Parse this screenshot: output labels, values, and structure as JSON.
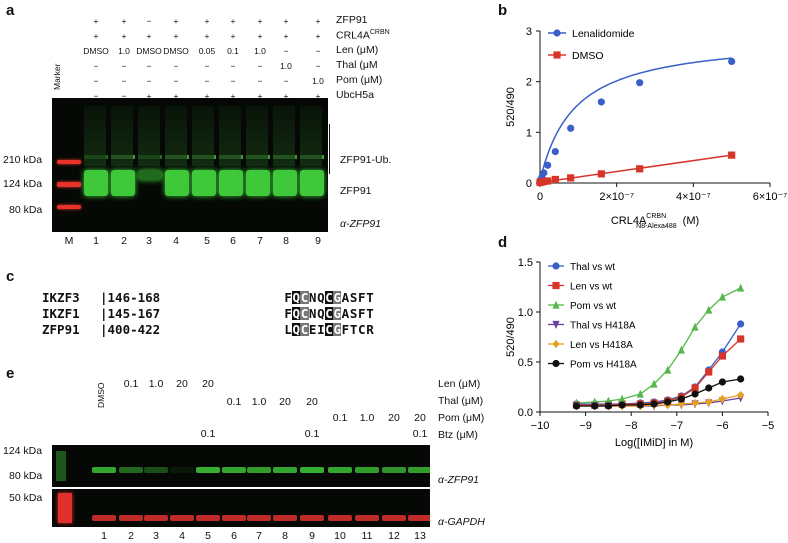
{
  "panel_a": {
    "label": "a",
    "rows": [
      {
        "name": "ZFP91",
        "vals": [
          "+",
          "+",
          "−",
          "+",
          "+",
          "+",
          "+",
          "+",
          "+"
        ]
      },
      {
        "name": "CRL4A",
        "sup": "CRBN",
        "vals": [
          "+",
          "+",
          "+",
          "+",
          "+",
          "+",
          "+",
          "+",
          "+"
        ]
      },
      {
        "name": "Len (μM)",
        "vals": [
          "DMSO",
          "1.0",
          "DMSO",
          "DMSO",
          "0.05",
          "0.1",
          "1.0",
          "−",
          "−"
        ]
      },
      {
        "name": "Thal (μM",
        "vals": [
          "−",
          "−",
          "−",
          "−",
          "−",
          "−",
          "−",
          "1.0",
          "−"
        ]
      },
      {
        "name": "Pom (μM)",
        "vals": [
          "−",
          "−",
          "−",
          "−",
          "−",
          "−",
          "−",
          "−",
          "1.0"
        ]
      },
      {
        "name": "UbcH5a",
        "vals": [
          "−",
          "−",
          "+",
          "+",
          "+",
          "+",
          "+",
          "+",
          "+"
        ]
      }
    ],
    "marker_label": "Marker",
    "mw_labels": [
      "210 kDa",
      "124 kDa",
      "80 kDa"
    ],
    "right_labels": [
      "ZFP91-Ub.",
      "ZFP91",
      "α-ZFP91"
    ],
    "lane_labels": [
      "M",
      "1",
      "2",
      "3",
      "4",
      "5",
      "6",
      "7",
      "8",
      "9"
    ]
  },
  "panel_b": {
    "label": "b",
    "chart_data": {
      "type": "scatter",
      "xlabel": "CRL4A",
      "xlabel_sup": "CRBN",
      "xlabel_sub": "N8-Alexa488",
      "xlabel_unit": "(M)",
      "ylabel": "520/490",
      "xlim": [
        0,
        6e-07
      ],
      "ylim": [
        0,
        3
      ],
      "xticks": [
        "0",
        "2×10⁻⁷",
        "4×10⁻⁷",
        "6×10⁻⁷"
      ],
      "yticks": [
        "0",
        "1",
        "2",
        "3"
      ],
      "series": [
        {
          "name": "Lenalidomide",
          "color": "#3a5fc8",
          "marker": "circle",
          "x": [
            0,
            5e-09,
            1e-08,
            2e-08,
            4e-08,
            8e-08,
            1.6e-07,
            2.6e-07,
            5e-07
          ],
          "y": [
            0.05,
            0.12,
            0.2,
            0.35,
            0.62,
            1.08,
            1.6,
            1.98,
            2.4
          ]
        },
        {
          "name": "DMSO",
          "color": "#d8352a",
          "marker": "square",
          "x": [
            0,
            5e-09,
            1e-08,
            2e-08,
            4e-08,
            8e-08,
            1.6e-07,
            2.6e-07,
            5e-07
          ],
          "y": [
            0.01,
            0.02,
            0.03,
            0.04,
            0.07,
            0.1,
            0.18,
            0.28,
            0.55
          ]
        }
      ]
    }
  },
  "panel_c": {
    "label": "c",
    "rows": [
      {
        "name": "IKZF3",
        "range": "|146-168",
        "seq": "FQCNQCGASFT"
      },
      {
        "name": "IKZF1",
        "range": "|145-167",
        "seq": "FQCNQCGASFT"
      },
      {
        "name": "ZFP91",
        "range": "|400-422",
        "seq": "LQCEICGFTCR"
      }
    ]
  },
  "panel_d": {
    "label": "d",
    "chart_data": {
      "type": "scatter",
      "xlabel": "Log([IMiD] in M)",
      "ylabel": "520/490",
      "xlim": [
        -10,
        -5
      ],
      "ylim": [
        0,
        1.5
      ],
      "xticks": [
        "−10",
        "−9",
        "−8",
        "−7",
        "−6",
        "−5"
      ],
      "yticks": [
        "0.0",
        "0.5",
        "1.0",
        "1.5"
      ],
      "series": [
        {
          "name": "Thal vs wt",
          "color": "#3a5fc8",
          "marker": "circle",
          "x": [
            -9.2,
            -8.8,
            -8.5,
            -8.2,
            -7.8,
            -7.5,
            -7.2,
            -6.9,
            -6.6,
            -6.3,
            -6.0,
            -5.6
          ],
          "y": [
            0.08,
            0.08,
            0.08,
            0.08,
            0.09,
            0.1,
            0.12,
            0.16,
            0.25,
            0.42,
            0.6,
            0.88
          ]
        },
        {
          "name": "Len vs wt",
          "color": "#d8352a",
          "marker": "square",
          "x": [
            -9.2,
            -8.8,
            -8.5,
            -8.2,
            -7.8,
            -7.5,
            -7.2,
            -6.9,
            -6.6,
            -6.3,
            -6.0,
            -5.6
          ],
          "y": [
            0.07,
            0.07,
            0.07,
            0.08,
            0.08,
            0.09,
            0.11,
            0.15,
            0.24,
            0.4,
            0.56,
            0.73
          ]
        },
        {
          "name": "Pom vs wt",
          "color": "#55b84a",
          "marker": "triangle",
          "x": [
            -9.2,
            -8.8,
            -8.5,
            -8.2,
            -7.8,
            -7.5,
            -7.2,
            -6.9,
            -6.6,
            -6.3,
            -6.0,
            -5.6
          ],
          "y": [
            0.09,
            0.1,
            0.11,
            0.13,
            0.18,
            0.28,
            0.42,
            0.62,
            0.85,
            1.02,
            1.15,
            1.24
          ]
        },
        {
          "name": "Thal vs H418A",
          "color": "#6b3fa0",
          "marker": "triangle-down",
          "x": [
            -9.2,
            -8.8,
            -8.5,
            -8.2,
            -7.8,
            -7.5,
            -7.2,
            -6.9,
            -6.6,
            -6.3,
            -6.0,
            -5.6
          ],
          "y": [
            0.06,
            0.06,
            0.06,
            0.06,
            0.06,
            0.06,
            0.07,
            0.07,
            0.08,
            0.09,
            0.11,
            0.14
          ]
        },
        {
          "name": "Len vs H418A",
          "color": "#e9a020",
          "marker": "diamond",
          "x": [
            -9.2,
            -8.8,
            -8.5,
            -8.2,
            -7.8,
            -7.5,
            -7.2,
            -6.9,
            -6.6,
            -6.3,
            -6.0,
            -5.6
          ],
          "y": [
            0.06,
            0.06,
            0.06,
            0.06,
            0.06,
            0.07,
            0.07,
            0.08,
            0.09,
            0.1,
            0.13,
            0.17
          ]
        },
        {
          "name": "Pom vs H418A",
          "color": "#111111",
          "marker": "circle",
          "x": [
            -9.2,
            -8.8,
            -8.5,
            -8.2,
            -7.8,
            -7.5,
            -7.2,
            -6.9,
            -6.6,
            -6.3,
            -6.0,
            -5.6
          ],
          "y": [
            0.06,
            0.06,
            0.06,
            0.07,
            0.07,
            0.08,
            0.1,
            0.13,
            0.18,
            0.24,
            0.3,
            0.33
          ]
        }
      ]
    }
  },
  "panel_e": {
    "label": "e",
    "dmso": "DMSO",
    "len_vals": [
      "0.1",
      "1.0",
      "20",
      "20"
    ],
    "thal_vals": [
      "0.1",
      "1.0",
      "20",
      "20"
    ],
    "pom_vals": [
      "0.1",
      "1.0",
      "20",
      "20"
    ],
    "btz_vals": [
      "0.1",
      "0.1",
      "0.1"
    ],
    "row_names": [
      "Len (μM)",
      "Thal (μM)",
      "Pom (μM)",
      "Btz (μM)"
    ],
    "mw_labels": [
      "124 kDa",
      "80 kDa",
      "50 kDa"
    ],
    "right_labels": [
      "α-ZFP91",
      "α-GAPDH"
    ],
    "lane_labels": [
      "1",
      "2",
      "3",
      "4",
      "5",
      "6",
      "7",
      "8",
      "9",
      "10",
      "11",
      "12",
      "13"
    ]
  }
}
